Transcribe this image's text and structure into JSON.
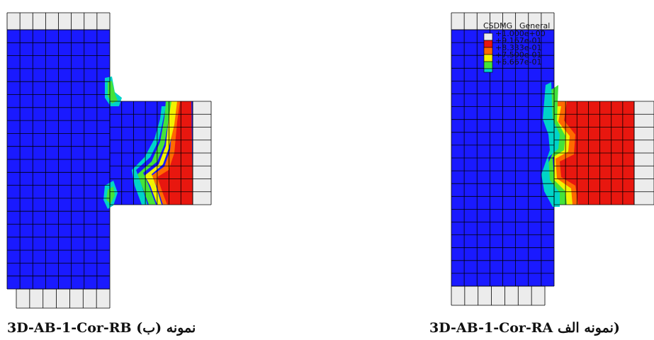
{
  "colors": {
    "blue": "#1a1aff",
    "red": "#e8170f",
    "orange_red": "#ff6a00",
    "orange": "#ffa000",
    "yellow": "#f2f200",
    "green": "#44e33a",
    "cyan": "#00d4c8",
    "gray_element": "#ececec",
    "mesh": "#000000"
  },
  "legend": {
    "variable": "CSDMG",
    "step": "General_",
    "entries": [
      {
        "label": "+1.000e+00",
        "color": "#ececec"
      },
      {
        "label": "+9.167e-01",
        "color": "#e8170f"
      },
      {
        "label": "+8.333e-01",
        "color": "#ff6a00"
      },
      {
        "label": "+7.500e-01",
        "color": "#f2f200"
      },
      {
        "label": "+6.667e-01",
        "color": "#44e33a"
      }
    ]
  },
  "captions": {
    "left": {
      "prefix": "(ب)",
      "word": "نمونه",
      "specimen": "3D-AB-1-Cor-RB"
    },
    "right": {
      "prefix": "الف)",
      "word": "نمونه",
      "specimen": "3D-AB-1-Cor-RA"
    }
  }
}
